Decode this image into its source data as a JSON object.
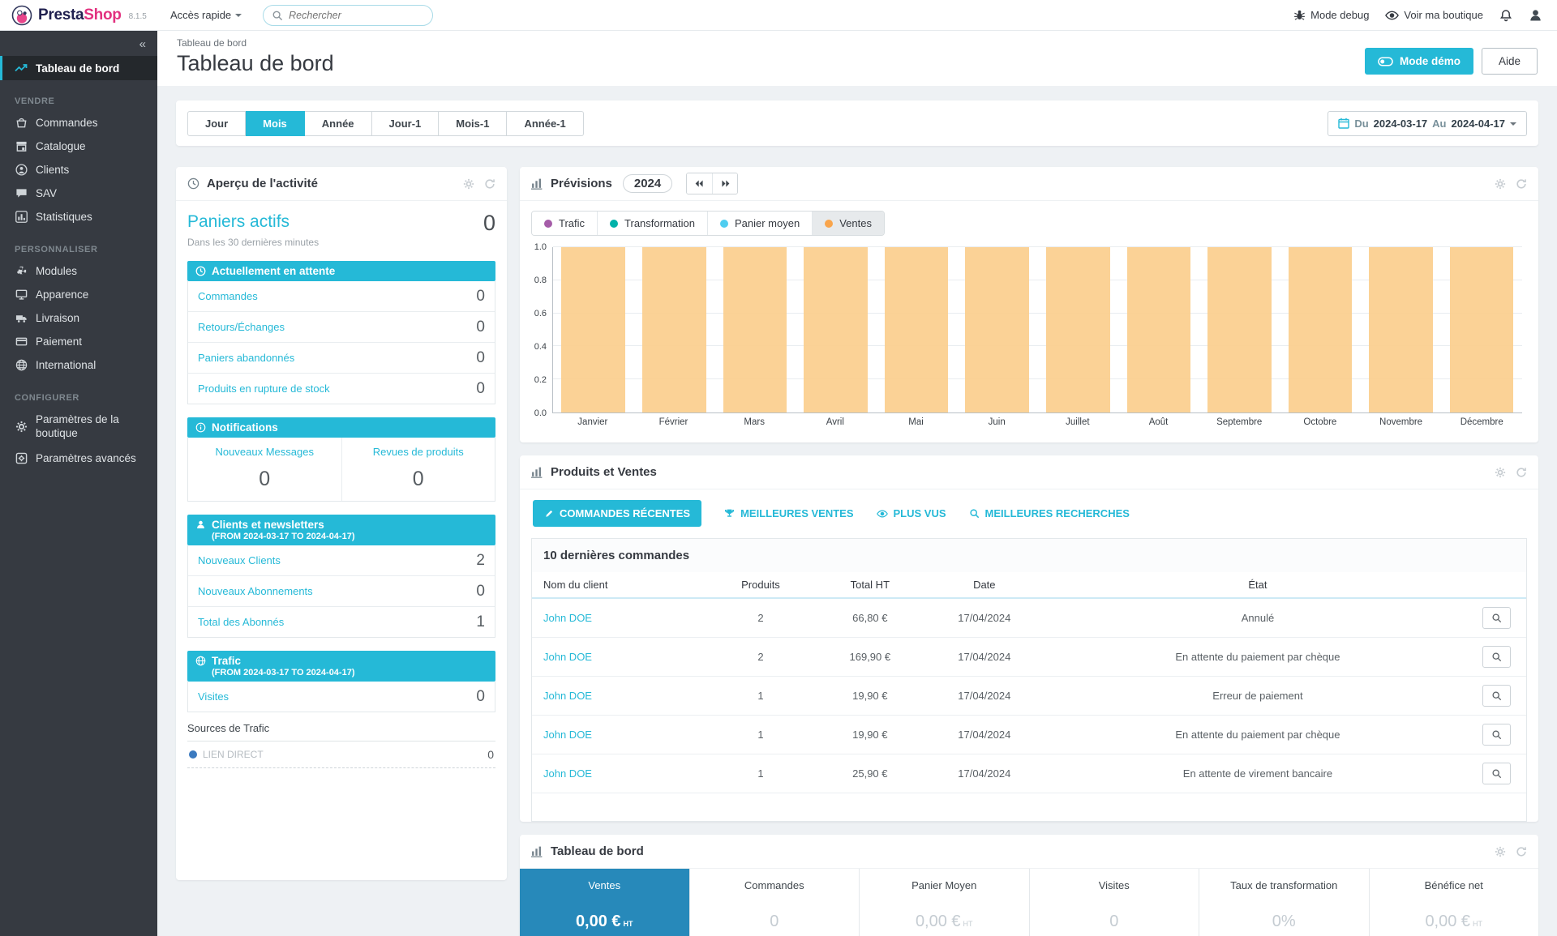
{
  "colors": {
    "accent": "#25b9d7",
    "kpi_active_bg": "#2789ba",
    "legend_traffic": "#a55ca8",
    "legend_conversion": "#00b2a9",
    "legend_cart": "#4fcdf0",
    "legend_sales": "#f9a54c",
    "direct_link_dot": "#3b7abf"
  },
  "topbar": {
    "logo_presta": "Presta",
    "logo_shop": "Shop",
    "version": "8.1.5",
    "quick_access": "Accès rapide",
    "search_placeholder": "Rechercher",
    "debug_label": "Mode debug",
    "view_shop_label": "Voir ma boutique"
  },
  "sidebar": {
    "collapse_glyph": "«",
    "active_item": "Tableau de bord",
    "sections": [
      {
        "title": "VENDRE",
        "items": [
          {
            "label": "Commandes"
          },
          {
            "label": "Catalogue"
          },
          {
            "label": "Clients"
          },
          {
            "label": "SAV"
          },
          {
            "label": "Statistiques"
          }
        ]
      },
      {
        "title": "PERSONNALISER",
        "items": [
          {
            "label": "Modules"
          },
          {
            "label": "Apparence"
          },
          {
            "label": "Livraison"
          },
          {
            "label": "Paiement"
          },
          {
            "label": "International"
          }
        ]
      },
      {
        "title": "CONFIGURER",
        "items": [
          {
            "label": "Paramètres de la boutique"
          },
          {
            "label": "Paramètres avancés"
          }
        ]
      }
    ]
  },
  "header": {
    "breadcrumb": "Tableau de bord",
    "title": "Tableau de bord",
    "demo_button": "Mode démo",
    "help_button": "Aide"
  },
  "filters": {
    "buttons": [
      {
        "label": "Jour"
      },
      {
        "label": "Mois"
      },
      {
        "label": "Année"
      },
      {
        "label": "Jour-1"
      },
      {
        "label": "Mois-1"
      },
      {
        "label": "Année-1"
      }
    ],
    "active": "Mois",
    "date_range": {
      "prefix": "Du",
      "from": "2024-03-17",
      "connector": "Au",
      "to": "2024-04-17"
    }
  },
  "activity": {
    "title": "Aperçu de l'activité",
    "active_carts_label": "Paniers actifs",
    "active_carts_value": "0",
    "active_carts_subtitle": "Dans les 30 dernières minutes",
    "pending": {
      "title": "Actuellement en attente",
      "rows": [
        {
          "label": "Commandes",
          "value": "0"
        },
        {
          "label": "Retours/Échanges",
          "value": "0"
        },
        {
          "label": "Paniers abandonnés",
          "value": "0"
        },
        {
          "label": "Produits en rupture de stock",
          "value": "0"
        }
      ]
    },
    "notifications": {
      "title": "Notifications",
      "cols": [
        {
          "label": "Nouveaux Messages",
          "value": "0"
        },
        {
          "label": "Revues de produits",
          "value": "0"
        }
      ]
    },
    "customers": {
      "title": "Clients et newsletters",
      "range": "(FROM 2024-03-17 TO 2024-04-17)",
      "rows": [
        {
          "label": "Nouveaux Clients",
          "value": "2"
        },
        {
          "label": "Nouveaux Abonnements",
          "value": "0"
        },
        {
          "label": "Total des Abonnés",
          "value": "1"
        }
      ]
    },
    "traffic": {
      "title": "Trafic",
      "range": "(FROM 2024-03-17 TO 2024-04-17)",
      "visits_label": "Visites",
      "visits_value": "0",
      "sources_title": "Sources de Trafic",
      "source_label": "LIEN DIRECT",
      "source_value": "0"
    }
  },
  "forecast": {
    "title": "Prévisions",
    "year": "2024",
    "legend": [
      {
        "label": "Trafic"
      },
      {
        "label": "Transformation"
      },
      {
        "label": "Panier moyen"
      },
      {
        "label": "Ventes"
      }
    ],
    "active_legend": "Ventes"
  },
  "chart_data": {
    "type": "bar",
    "title": "Prévisions 2024",
    "series_name": "Ventes",
    "categories": [
      "Janvier",
      "Février",
      "Mars",
      "Avril",
      "Mai",
      "Juin",
      "Juillet",
      "Août",
      "Septembre",
      "Octobre",
      "Novembre",
      "Décembre"
    ],
    "values": [
      1.0,
      1.0,
      1.0,
      1.0,
      1.0,
      1.0,
      1.0,
      1.0,
      1.0,
      1.0,
      1.0,
      1.0
    ],
    "ylim": [
      0,
      1
    ],
    "yticks": [
      "0.0",
      "0.2",
      "0.4",
      "0.6",
      "0.8",
      "1.0"
    ],
    "grid": true,
    "bar_color": "#fbcf8e",
    "legend_position": "top"
  },
  "products": {
    "title": "Produits et Ventes",
    "active_tab": "COMMANDES RÉCENTES",
    "tabs": [
      {
        "label": "COMMANDES RÉCENTES"
      },
      {
        "label": "MEILLEURES VENTES"
      },
      {
        "label": "PLUS VUS"
      },
      {
        "label": "MEILLEURES RECHERCHES"
      }
    ],
    "table": {
      "title": "10 dernières commandes",
      "headers": [
        "Nom du client",
        "Produits",
        "Total HT",
        "Date",
        "État"
      ],
      "rows": [
        {
          "client": "John DOE",
          "products": "2",
          "total": "66,80 €",
          "date": "17/04/2024",
          "status": "Annulé"
        },
        {
          "client": "John DOE",
          "products": "2",
          "total": "169,90 €",
          "date": "17/04/2024",
          "status": "En attente du paiement par chèque"
        },
        {
          "client": "John DOE",
          "products": "1",
          "total": "19,90 €",
          "date": "17/04/2024",
          "status": "Erreur de paiement"
        },
        {
          "client": "John DOE",
          "products": "1",
          "total": "19,90 €",
          "date": "17/04/2024",
          "status": "En attente du paiement par chèque"
        },
        {
          "client": "John DOE",
          "products": "1",
          "total": "25,90 €",
          "date": "17/04/2024",
          "status": "En attente de virement bancaire"
        }
      ]
    }
  },
  "dashboard": {
    "title": "Tableau de bord",
    "active_kpi": "Ventes",
    "kpis": [
      {
        "label": "Ventes",
        "value": "0,00 €",
        "unit": "HT"
      },
      {
        "label": "Commandes",
        "value": "0"
      },
      {
        "label": "Panier Moyen",
        "value": "0,00 €",
        "unit": "HT"
      },
      {
        "label": "Visites",
        "value": "0"
      },
      {
        "label": "Taux de transformation",
        "value": "0%"
      },
      {
        "label": "Bénéfice net",
        "value": "0,00 €",
        "unit": "HT"
      }
    ]
  }
}
